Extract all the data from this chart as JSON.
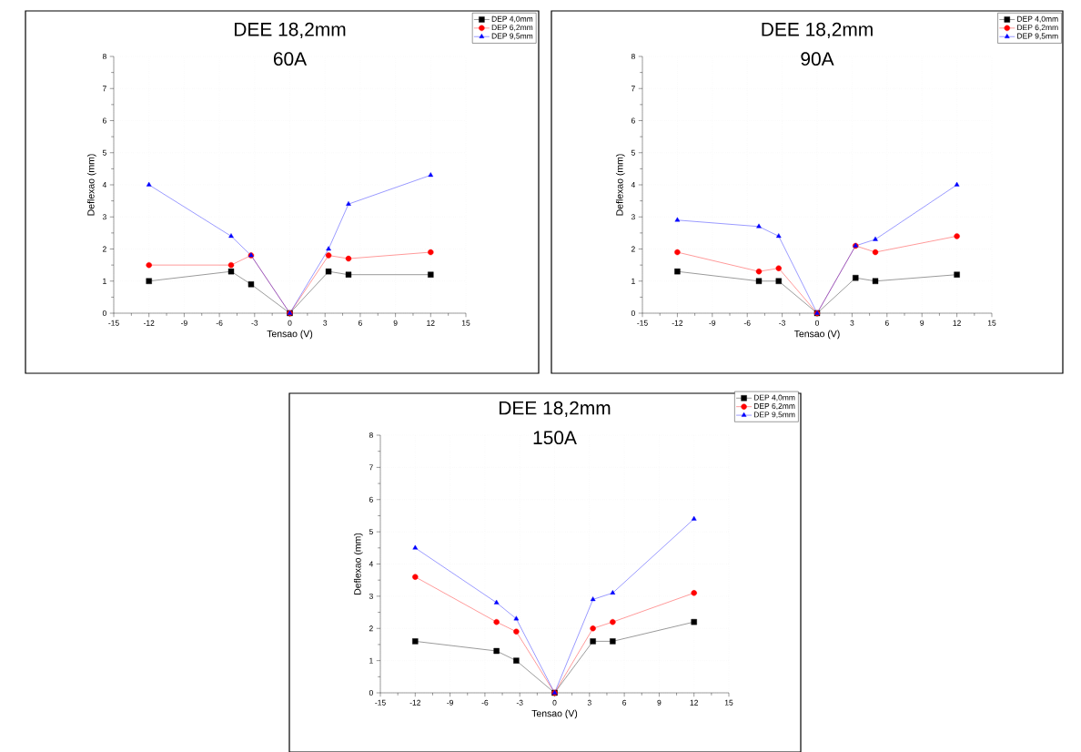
{
  "chart_data": [
    {
      "type": "line",
      "title": "DEE 18,2mm",
      "subtitle": "60A",
      "xlabel": "Tensao (V)",
      "ylabel": "Deflexao (mm)",
      "x": [
        -12,
        -5,
        -3.3,
        0,
        3.3,
        5,
        12
      ],
      "xlim": [
        -15,
        15
      ],
      "xticks": [
        -15,
        -12,
        -9,
        -6,
        -3,
        0,
        3,
        6,
        9,
        12,
        15
      ],
      "ylim": [
        0,
        8
      ],
      "yticks": [
        0,
        1,
        2,
        3,
        4,
        5,
        6,
        7,
        8
      ],
      "grid": true,
      "legend": "top right",
      "line_style": "solid",
      "series": [
        {
          "name": "DEP 4,0mm",
          "color": "#000000",
          "marker": "square",
          "values": [
            1,
            1.3,
            0.9,
            0,
            1.3,
            1.2,
            1.2
          ]
        },
        {
          "name": "DEP 6,2mm",
          "color": "#ff0000",
          "marker": "circle",
          "values": [
            1.5,
            1.5,
            1.8,
            0,
            1.8,
            1.7,
            1.9
          ]
        },
        {
          "name": "DEP 9,5mm",
          "color": "#0000ff",
          "marker": "triangle",
          "values": [
            4,
            2.4,
            1.8,
            0,
            2,
            3.4,
            4.3
          ]
        }
      ]
    },
    {
      "type": "line",
      "title": "DEE 18,2mm",
      "subtitle": "90A",
      "xlabel": "Tensao (V)",
      "ylabel": "Deflexao (mm)",
      "x": [
        -12,
        -5,
        -3.3,
        0,
        3.3,
        5,
        12
      ],
      "xlim": [
        -15,
        15
      ],
      "xticks": [
        -15,
        -12,
        -9,
        -6,
        -3,
        0,
        3,
        6,
        9,
        12,
        15
      ],
      "ylim": [
        0,
        8
      ],
      "yticks": [
        0,
        1,
        2,
        3,
        4,
        5,
        6,
        7,
        8
      ],
      "grid": true,
      "legend": "top right",
      "line_style": "solid",
      "series": [
        {
          "name": "DEP 4,0mm",
          "color": "#000000",
          "marker": "square",
          "values": [
            1.3,
            1,
            1,
            0,
            1.1,
            1,
            1.2
          ]
        },
        {
          "name": "DEP 6,2mm",
          "color": "#ff0000",
          "marker": "circle",
          "values": [
            1.9,
            1.3,
            1.4,
            0,
            2.1,
            1.9,
            2.4
          ]
        },
        {
          "name": "DEP 9,5mm",
          "color": "#0000ff",
          "marker": "triangle",
          "values": [
            2.9,
            2.7,
            2.4,
            0,
            2.1,
            2.3,
            4
          ]
        }
      ]
    },
    {
      "type": "line",
      "title": "DEE 18,2mm",
      "subtitle": "150A",
      "xlabel": "Tensao (V)",
      "ylabel": "Deflexao (mm)",
      "x": [
        -12,
        -5,
        -3.3,
        0,
        3.3,
        5,
        12
      ],
      "xlim": [
        -15,
        15
      ],
      "xticks": [
        -15,
        -12,
        -9,
        -6,
        -3,
        0,
        3,
        6,
        9,
        12,
        15
      ],
      "ylim": [
        0,
        8
      ],
      "yticks": [
        0,
        1,
        2,
        3,
        4,
        5,
        6,
        7,
        8
      ],
      "grid": true,
      "legend": "top right",
      "line_style": "solid",
      "series": [
        {
          "name": "DEP 4,0mm",
          "color": "#000000",
          "marker": "square",
          "values": [
            1.6,
            1.3,
            1,
            0,
            1.6,
            1.6,
            2.2
          ]
        },
        {
          "name": "DEP 6,2mm",
          "color": "#ff0000",
          "marker": "circle",
          "values": [
            3.6,
            2.2,
            1.9,
            0,
            2,
            2.2,
            3.1
          ]
        },
        {
          "name": "DEP 9,5mm",
          "color": "#0000ff",
          "marker": "triangle",
          "values": [
            4.5,
            2.8,
            2.3,
            0,
            2.9,
            3.1,
            5.4
          ]
        }
      ]
    }
  ]
}
